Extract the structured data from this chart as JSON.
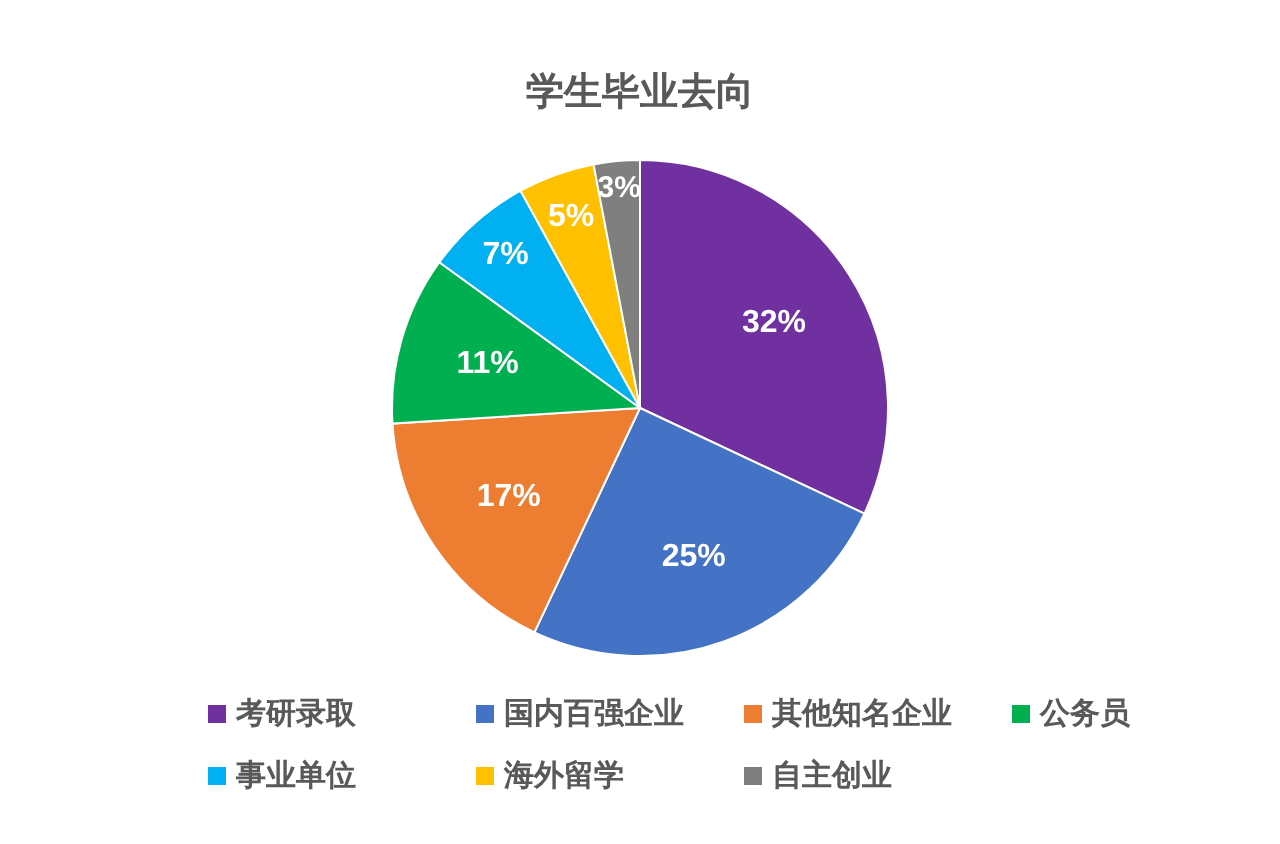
{
  "chart_data": {
    "type": "pie",
    "title": "学生毕业去向",
    "categories": [
      "考研录取",
      "国内百强企业",
      "其他知名企业",
      "公务员",
      "事业单位",
      "海外留学",
      "自主创业"
    ],
    "values": [
      32,
      25,
      17,
      11,
      7,
      5,
      3
    ],
    "colors": [
      "#7030a0",
      "#4472c4",
      "#ed7d31",
      "#00b050",
      "#00b0f0",
      "#ffc000",
      "#7f7f7f"
    ],
    "value_labels": [
      "32%",
      "25%",
      "17%",
      "11%",
      "7%",
      "5%",
      "3%"
    ],
    "legend": "bottom"
  }
}
